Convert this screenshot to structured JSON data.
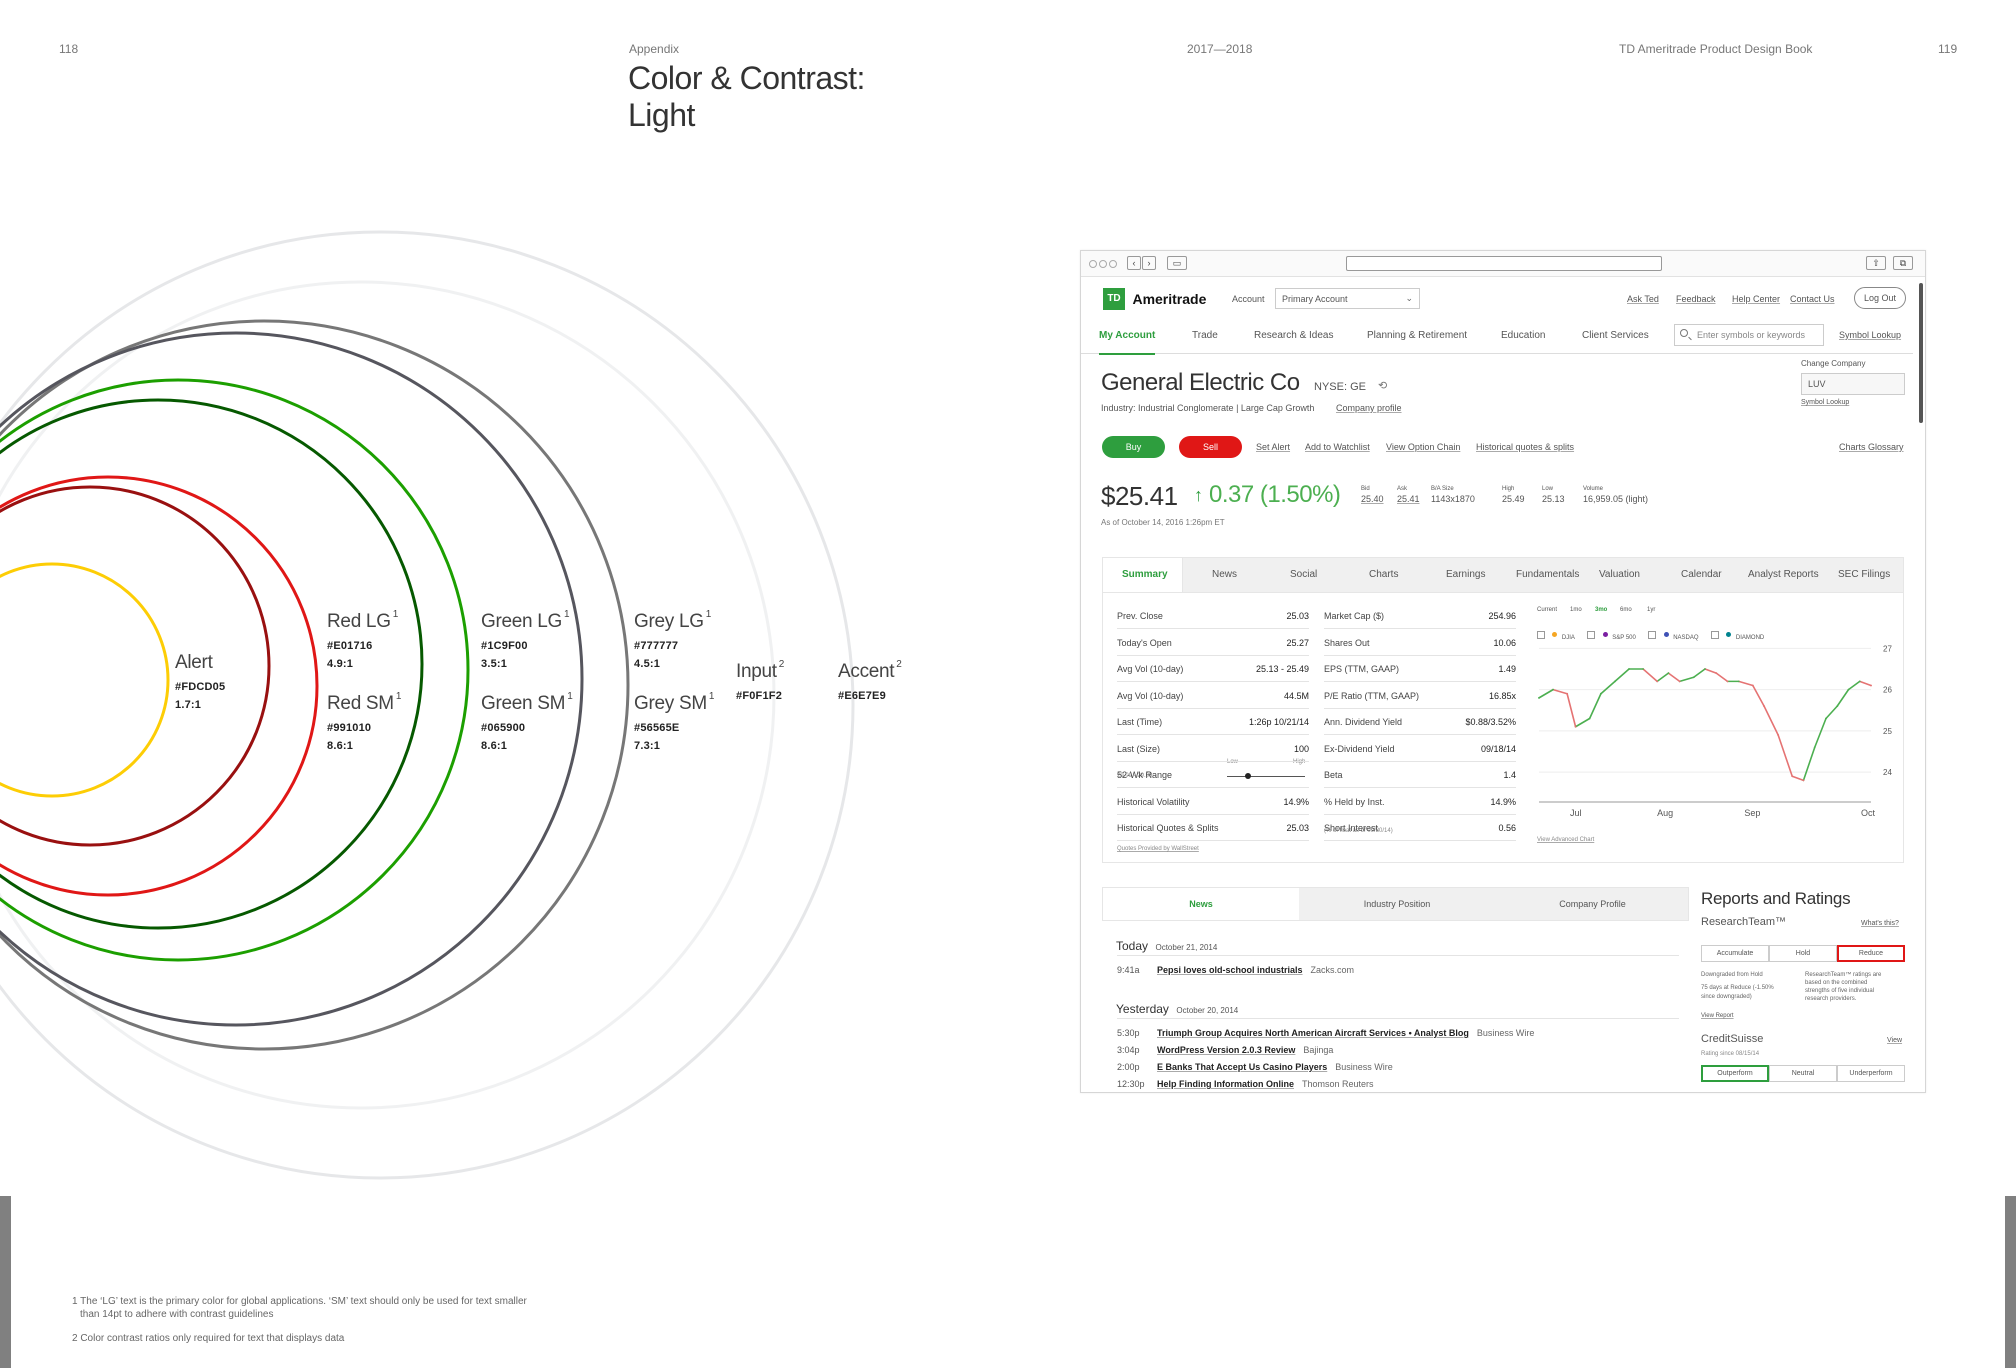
{
  "header": {
    "page_left": "118",
    "section": "Appendix",
    "title_line1": "Color & Contrast:",
    "title_line2": "Light",
    "years": "2017—2018",
    "book": "TD Ameritrade Product Design Book",
    "page_right": "119"
  },
  "swatches": [
    {
      "name": "Alert",
      "sup": "",
      "hex": "#FDCD05",
      "ratio": "1.7:1",
      "color": "#FDCD05"
    },
    {
      "name": "Red LG",
      "sup": "1",
      "hex": "#E01716",
      "ratio": "4.9:1",
      "color": "#E01716"
    },
    {
      "name": "Red SM",
      "sup": "1",
      "hex": "#991010",
      "ratio": "8.6:1",
      "color": "#991010"
    },
    {
      "name": "Green LG",
      "sup": "1",
      "hex": "#1C9F00",
      "ratio": "3.5:1",
      "color": "#1C9F00"
    },
    {
      "name": "Green SM",
      "sup": "1",
      "hex": "#065900",
      "ratio": "8.6:1",
      "color": "#065900"
    },
    {
      "name": "Grey LG",
      "sup": "1",
      "hex": "#777777",
      "ratio": "4.5:1",
      "color": "#777777"
    },
    {
      "name": "Grey SM",
      "sup": "1",
      "hex": "#56565E",
      "ratio": "7.3:1",
      "color": "#56565E"
    },
    {
      "name": "Input",
      "sup": "2",
      "hex": "#F0F1F2",
      "ratio": "",
      "color": "#F0F1F2"
    },
    {
      "name": "Accent",
      "sup": "2",
      "hex": "#E6E7E9",
      "ratio": "",
      "color": "#E6E7E9"
    }
  ],
  "footnotes": {
    "note1_line1": "1 The ‘LG’ text is the primary color for global applications. ‘SM’ text should only be used for text smaller",
    "note1_line2": "than 14pt to adhere with contrast guidelines",
    "note2": "2 Color contrast ratios only required for text that displays data"
  },
  "mockup": {
    "logo_badge": "TD",
    "logo_text": "Ameritrade",
    "account_label": "Account",
    "account_value": "Primary Account",
    "util_links": [
      "Ask Ted",
      "Feedback",
      "Help Center",
      "Contact Us"
    ],
    "logout": "Log Out",
    "nav": [
      "My Account",
      "Trade",
      "Research & Ideas",
      "Planning & Retirement",
      "Education",
      "Client Services"
    ],
    "search_placeholder": "Enter symbols or keywords",
    "symbol_lookup": "Symbol Lookup",
    "company": "General Electric Co",
    "ticker": "NYSE: GE",
    "industry": "Industry: Industrial Conglomerate | Large Cap Growth",
    "company_profile": "Company profile",
    "change_company": "Change Company",
    "change_value": "LUV",
    "symbol_lookup_small": "Symbol Lookup",
    "buy": "Buy",
    "sell": "Sell",
    "actions": [
      "Set Alert",
      "Add to Watchlist",
      "View Option Chain",
      "Historical quotes & splits"
    ],
    "charts_glossary": "Charts Glossary",
    "price": "$25.41",
    "change": "0.37 (1.50%)",
    "quote_stats": [
      {
        "label": "Bid",
        "value": "25.40"
      },
      {
        "label": "Ask",
        "value": "25.41"
      },
      {
        "label": "B/A Size",
        "value": "1143x1870"
      },
      {
        "label": "High",
        "value": "25.49"
      },
      {
        "label": "Low",
        "value": "25.13"
      },
      {
        "label": "Volume",
        "value": "16,959.05 (light)"
      }
    ],
    "as_of": "As of October 14, 2016 1:26pm ET",
    "tabs": [
      "Summary",
      "News",
      "Social",
      "Charts",
      "Earnings",
      "Fundamentals",
      "Valuation",
      "Calendar",
      "Analyst Reports",
      "SEC Filings"
    ],
    "quote_left": [
      {
        "k": "Prev. Close",
        "v": "25.03"
      },
      {
        "k": "Today's Open",
        "v": "25.27"
      },
      {
        "k": "Avg Vol (10-day)",
        "v": "25.13 - 25.49"
      },
      {
        "k": "Avg Vol (10-day)",
        "v": "44.5M"
      },
      {
        "k": "Last (Time)",
        "v": "1:26p 10/21/14"
      },
      {
        "k": "Last (Size)",
        "v": "100"
      },
      {
        "k": "52-Wk Range",
        "v": ""
      },
      {
        "k": "Historical Volatility",
        "v": "14.9%"
      },
      {
        "k": "Historical Quotes & Splits",
        "v": "25.03"
      }
    ],
    "range_sub": "29.09 - 29.09",
    "range_low": "Low",
    "range_high": "High",
    "quote_right": [
      {
        "k": "Market Cap ($)",
        "v": "254.96"
      },
      {
        "k": "Shares Out",
        "v": "10.06"
      },
      {
        "k": "EPS (TTM, GAAP)",
        "v": "1.49"
      },
      {
        "k": "P/E Ratio (TTM, GAAP)",
        "v": "16.85x"
      },
      {
        "k": "Ann. Dividend Yield",
        "v": "$0.88/3.52%"
      },
      {
        "k": "Ex-Dividend Yield",
        "v": "09/18/14"
      },
      {
        "k": "Beta",
        "v": "1.4"
      },
      {
        "k": "% Held by Inst.",
        "v": "14.9%"
      },
      {
        "k": "Short Interest",
        "v": "0.56"
      }
    ],
    "short_sub": "(% of float as of 09/30/14)",
    "quotes_link": "Quotes Provided by WallStreet",
    "chart_ranges": [
      "Current",
      "1mo",
      "3mo",
      "6mo",
      "1yr"
    ],
    "chart_compare": [
      "DJIA",
      "S&P 500",
      "NASDAQ",
      "DIAMOND"
    ],
    "chart_compare_colors": [
      "#f5a623",
      "#7b1fa2",
      "#3f51b5",
      "#00838f"
    ],
    "chart_link": "View Advanced Chart",
    "news_tabs": [
      "News",
      "Industry Position",
      "Company Profile"
    ],
    "today_label": "Today",
    "today_date": "October 21, 2014",
    "today_items": [
      {
        "time": "9:41a",
        "title": "Pepsi loves old-school industrials",
        "source": "Zacks.com"
      }
    ],
    "yesterday_label": "Yesterday",
    "yesterday_date": "October 20, 2014",
    "yesterday_items": [
      {
        "time": "5:30p",
        "title": "Triumph Group Acquires North American Aircraft Services • Analyst Blog",
        "source": "Business Wire"
      },
      {
        "time": "3:04p",
        "title": "WordPress Version 2.0.3 Review",
        "source": "Bajinga"
      },
      {
        "time": "2:00p",
        "title": "E Banks That Accept Us Casino Players",
        "source": "Business Wire"
      },
      {
        "time": "12:30p",
        "title": "Help Finding Information Online",
        "source": "Thomson Reuters"
      }
    ],
    "reports_title": "Reports and Ratings",
    "rt_name": "ResearchTeam™",
    "rt_link": "What's this?",
    "rt_ratings": [
      "Accumulate",
      "Hold",
      "Reduce"
    ],
    "rt_left_l1": "Downgraded from Hold",
    "rt_left_l2": "75 days at Reduce (-1.50%",
    "rt_left_l3": "since downgraded)",
    "rt_right_l1": "ResearchTeam™ ratings are",
    "rt_right_l2": "based on the combined",
    "rt_right_l3": "strengths of five individual",
    "rt_right_l4": "research providers.",
    "rt_view": "View Report",
    "cs_name": "CreditSuisse",
    "cs_link": "View",
    "cs_sub": "Rating since 08/15/14",
    "cs_ratings": [
      "Outperform",
      "Neutral",
      "Underperform"
    ]
  },
  "chart_data": {
    "type": "line",
    "title": "",
    "xlabel": "",
    "ylabel": "",
    "x_ticks": [
      "Jul",
      "Aug",
      "Sep",
      "Oct"
    ],
    "y_ticks": [
      24,
      25,
      26,
      27
    ],
    "ylim": [
      23.3,
      27.3
    ],
    "grid": true,
    "x": [
      "2014-06-20",
      "2014-06-25",
      "2014-06-30",
      "2014-07-03",
      "2014-07-08",
      "2014-07-12",
      "2014-07-17",
      "2014-07-22",
      "2014-07-27",
      "2014-08-01",
      "2014-08-05",
      "2014-08-09",
      "2014-08-14",
      "2014-08-18",
      "2014-08-22",
      "2014-08-26",
      "2014-08-30",
      "2014-09-04",
      "2014-09-08",
      "2014-09-13",
      "2014-09-18",
      "2014-09-22",
      "2014-09-26",
      "2014-09-30",
      "2014-10-04",
      "2014-10-08",
      "2014-10-12",
      "2014-10-16"
    ],
    "values": [
      25.8,
      26.0,
      25.9,
      25.1,
      25.3,
      25.9,
      26.2,
      26.5,
      26.5,
      26.2,
      26.4,
      26.2,
      26.3,
      26.5,
      26.4,
      26.2,
      26.2,
      26.1,
      25.6,
      24.9,
      23.9,
      23.8,
      24.6,
      25.3,
      25.6,
      26.0,
      26.2,
      26.1
    ],
    "series_colors": {
      "up": "#4caf50",
      "down": "#e57373"
    }
  }
}
